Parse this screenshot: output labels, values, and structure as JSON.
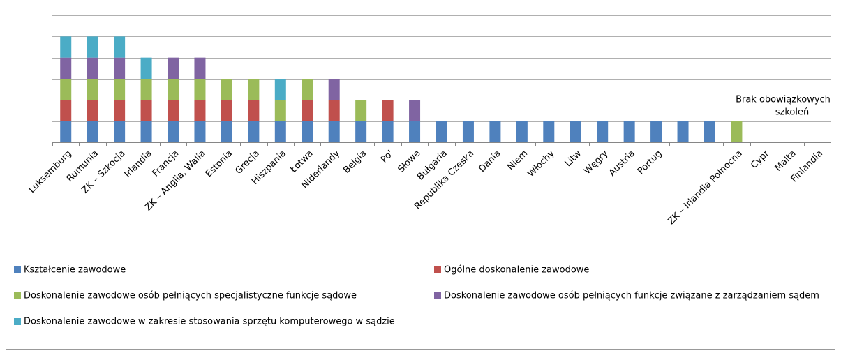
{
  "chart_data": {
    "type": "bar",
    "stacked": true,
    "categories": [
      "Luksemburg",
      "Rumunia",
      "ZK – Szkocja",
      "Irlandia",
      "Francja",
      "ZK – Anglia, Walia",
      "Estonia",
      "Grecja",
      "Hiszpania",
      "Łotwa",
      "Niderlandy",
      "Belgia",
      "Po'",
      "Słowe",
      "Bułgaria",
      "Republika Czeska",
      "Dania",
      "Niem",
      "Włochy",
      "Litw",
      "Węgry",
      "Austria",
      "Portug",
      null,
      null,
      "ZK – Irlandia Północna",
      "Cypr",
      "Malta",
      "Finlandia"
    ],
    "series": [
      {
        "name": "Kształcenie zawodowe",
        "color": "#4f81bd",
        "values": [
          1,
          1,
          1,
          1,
          1,
          1,
          1,
          1,
          1,
          1,
          1,
          1,
          1,
          1,
          1,
          1,
          1,
          1,
          1,
          1,
          1,
          1,
          1,
          1,
          1,
          0,
          0,
          0,
          0
        ]
      },
      {
        "name": "Ogólne doskonalenie zawodowe",
        "color": "#c0504d",
        "values": [
          1,
          1,
          1,
          1,
          1,
          1,
          1,
          1,
          0,
          1,
          1,
          0,
          1,
          0,
          0,
          0,
          0,
          0,
          0,
          0,
          0,
          0,
          0,
          0,
          0,
          0,
          0,
          0,
          0
        ]
      },
      {
        "name": "Doskonalenie zawodowe osób pełniących specjalistyczne funkcje sądowe",
        "color": "#9bbb59",
        "values": [
          1,
          1,
          1,
          1,
          1,
          1,
          1,
          1,
          1,
          1,
          0,
          1,
          0,
          0,
          0,
          0,
          0,
          0,
          0,
          0,
          0,
          0,
          0,
          0,
          0,
          1,
          0,
          0,
          0
        ]
      },
      {
        "name": "Doskonalenie zawodowe osób pełniących funkcje związane z zarządzaniem sądem",
        "color": "#8064a2",
        "values": [
          1,
          1,
          1,
          0,
          1,
          1,
          0,
          0,
          0,
          0,
          1,
          0,
          0,
          1,
          0,
          0,
          0,
          0,
          0,
          0,
          0,
          0,
          0,
          0,
          0,
          0,
          0,
          0,
          0
        ]
      },
      {
        "name": "Doskonalenie zawodowe w zakresie stosowania sprzętu komputerowego w sądzie",
        "color": "#4bacc6",
        "values": [
          1,
          1,
          1,
          1,
          0,
          0,
          0,
          0,
          1,
          0,
          0,
          0,
          0,
          0,
          0,
          0,
          0,
          0,
          0,
          0,
          0,
          0,
          0,
          0,
          0,
          0,
          0,
          0,
          0
        ]
      }
    ],
    "ylim": [
      0,
      6
    ],
    "yticks": [
      0,
      1,
      2,
      3,
      4,
      5,
      6
    ],
    "grid": true,
    "annotation": [
      "Brak obowiązkowych",
      "szkoleń"
    ],
    "legend": "bottom"
  }
}
